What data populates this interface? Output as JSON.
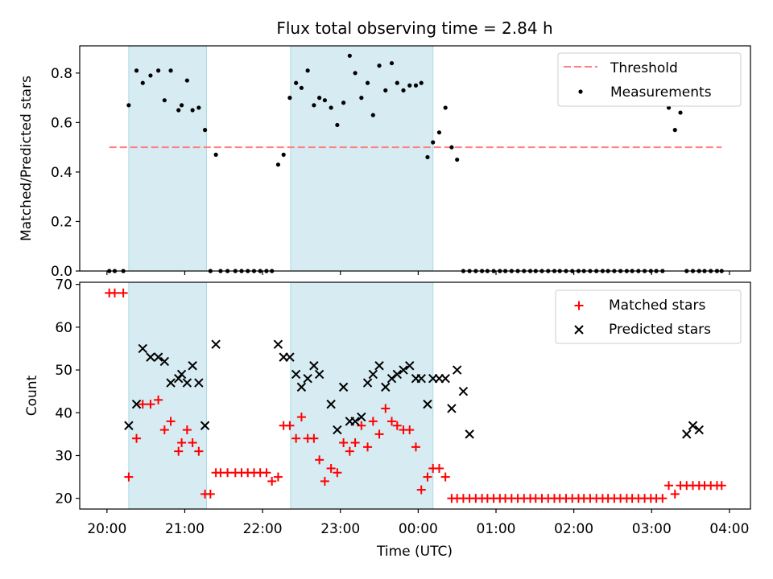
{
  "chart_data": {
    "title": "Flux total observing time = 2.84 h",
    "xlabel": "Time (UTC)",
    "x_unit": "hours from 20:00 UTC",
    "xlim": [
      -0.35,
      8.27
    ],
    "x_ticks": [
      {
        "value": 0,
        "label": "20:00"
      },
      {
        "value": 1,
        "label": "21:00"
      },
      {
        "value": 2,
        "label": "22:00"
      },
      {
        "value": 3,
        "label": "23:00"
      },
      {
        "value": 4,
        "label": "00:00"
      },
      {
        "value": 5,
        "label": "01:00"
      },
      {
        "value": 6,
        "label": "02:00"
      },
      {
        "value": 7,
        "label": "03:00"
      },
      {
        "value": 8,
        "label": "04:00"
      }
    ],
    "observing_windows": [
      [
        0.28,
        1.28
      ],
      [
        2.36,
        4.19
      ]
    ],
    "window_color": "#add8e6",
    "top_panel": {
      "type": "scatter",
      "ylabel": "Matched/Predicted stars",
      "ylim": [
        0,
        0.91
      ],
      "y_ticks": [
        "0.0",
        "0.2",
        "0.4",
        "0.6",
        "0.8"
      ],
      "y_tick_values": [
        0,
        0.2,
        0.4,
        0.6,
        0.8
      ],
      "legend": {
        "position": "top-right",
        "entries": [
          "Threshold",
          "Measurements"
        ]
      },
      "threshold": {
        "name": "Threshold",
        "value": 0.5,
        "x_range": [
          0.03,
          7.9
        ],
        "color": "#ff7f7f",
        "style": "dashed"
      },
      "measurements": {
        "name": "Measurements",
        "color": "#000000",
        "x": [
          0.03,
          0.1,
          0.21,
          0.28,
          0.38,
          0.46,
          0.56,
          0.66,
          0.74,
          0.82,
          0.92,
          0.96,
          1.03,
          1.1,
          1.18,
          1.26,
          1.33,
          1.4,
          1.46,
          1.55,
          1.65,
          1.73,
          1.81,
          1.89,
          1.97,
          2.05,
          2.12,
          2.2,
          2.27,
          2.35,
          2.43,
          2.5,
          2.58,
          2.66,
          2.73,
          2.8,
          2.88,
          2.96,
          3.04,
          3.12,
          3.19,
          3.27,
          3.35,
          3.42,
          3.5,
          3.58,
          3.66,
          3.73,
          3.81,
          3.89,
          3.97,
          4.04,
          4.12,
          4.19,
          4.27,
          4.35,
          4.43,
          4.5,
          4.58,
          4.66,
          4.74,
          4.82,
          4.89,
          4.97,
          5.05,
          5.12,
          5.2,
          5.28,
          5.36,
          5.44,
          5.51,
          5.59,
          5.67,
          5.75,
          5.82,
          5.9,
          5.98,
          6.06,
          6.13,
          6.21,
          6.29,
          6.37,
          6.44,
          6.52,
          6.6,
          6.68,
          6.75,
          6.83,
          6.91,
          6.99,
          7.06,
          7.14,
          7.22,
          7.3,
          7.37,
          7.45,
          7.53,
          7.61,
          7.68,
          7.76,
          7.84,
          7.9
        ],
        "y": [
          0,
          0,
          0,
          0.67,
          0.81,
          0.76,
          0.79,
          0.81,
          0.69,
          0.81,
          0.65,
          0.67,
          0.77,
          0.65,
          0.66,
          0.57,
          0,
          0.47,
          0,
          0,
          0,
          0,
          0,
          0,
          0,
          0,
          0,
          0.43,
          0.47,
          0.7,
          0.76,
          0.74,
          0.81,
          0.67,
          0.7,
          0.69,
          0.66,
          0.59,
          0.68,
          0.87,
          0.8,
          0.7,
          0.76,
          0.63,
          0.83,
          0.73,
          0.84,
          0.76,
          0.73,
          0.75,
          0.75,
          0.76,
          0.46,
          0.52,
          0.56,
          0.66,
          0.5,
          0.45,
          0,
          0,
          0,
          0,
          0,
          0,
          0,
          0,
          0,
          0,
          0,
          0,
          0,
          0,
          0,
          0,
          0,
          0,
          0,
          0,
          0,
          0,
          0,
          0,
          0,
          0,
          0,
          0,
          0,
          0,
          0,
          0,
          0,
          0,
          0.66,
          0.57,
          0.64,
          0,
          0,
          0,
          0,
          0,
          0,
          0
        ]
      }
    },
    "bottom_panel": {
      "type": "scatter",
      "ylabel": "Count",
      "ylim": [
        17.5,
        70.5
      ],
      "y_ticks": [
        "20",
        "30",
        "40",
        "50",
        "60",
        "70"
      ],
      "y_tick_values": [
        20,
        30,
        40,
        50,
        60,
        70
      ],
      "legend": {
        "position": "top-right",
        "entries": [
          "Matched stars",
          "Predicted stars"
        ]
      },
      "series": [
        {
          "name": "Matched stars",
          "marker": "plus",
          "color": "#ff0000",
          "x": [
            0.03,
            0.1,
            0.21,
            0.28,
            0.38,
            0.46,
            0.56,
            0.66,
            0.74,
            0.82,
            0.92,
            0.96,
            1.03,
            1.1,
            1.18,
            1.26,
            1.33,
            1.4,
            1.46,
            1.55,
            1.65,
            1.73,
            1.81,
            1.89,
            1.97,
            2.05,
            2.12,
            2.2,
            2.27,
            2.35,
            2.43,
            2.5,
            2.58,
            2.66,
            2.73,
            2.8,
            2.88,
            2.96,
            3.04,
            3.12,
            3.19,
            3.27,
            3.35,
            3.42,
            3.5,
            3.58,
            3.66,
            3.73,
            3.81,
            3.89,
            3.97,
            4.04,
            4.12,
            4.19,
            4.27,
            4.35,
            4.43,
            4.5,
            4.58,
            4.66,
            4.74,
            4.82,
            4.89,
            4.97,
            5.05,
            5.12,
            5.2,
            5.28,
            5.36,
            5.44,
            5.51,
            5.59,
            5.67,
            5.75,
            5.82,
            5.9,
            5.98,
            6.06,
            6.13,
            6.21,
            6.29,
            6.37,
            6.44,
            6.52,
            6.6,
            6.68,
            6.75,
            6.83,
            6.91,
            6.99,
            7.06,
            7.14,
            7.22,
            7.3,
            7.37,
            7.45,
            7.53,
            7.61,
            7.68,
            7.76,
            7.84,
            7.9
          ],
          "y": [
            68,
            68,
            68,
            25,
            34,
            42,
            42,
            43,
            36,
            38,
            31,
            33,
            36,
            33,
            31,
            21,
            21,
            26,
            26,
            26,
            26,
            26,
            26,
            26,
            26,
            26,
            24,
            25,
            37,
            37,
            34,
            39,
            34,
            34,
            29,
            24,
            27,
            26,
            33,
            31,
            33,
            37,
            32,
            38,
            35,
            41,
            38,
            37,
            36,
            36,
            32,
            22,
            25,
            27,
            27,
            25,
            20,
            20,
            20,
            20,
            20,
            20,
            20,
            20,
            20,
            20,
            20,
            20,
            20,
            20,
            20,
            20,
            20,
            20,
            20,
            20,
            20,
            20,
            20,
            20,
            20,
            20,
            20,
            20,
            20,
            20,
            20,
            20,
            20,
            20,
            20,
            20,
            23,
            21,
            23,
            23,
            23,
            23,
            23,
            23,
            23,
            23
          ]
        },
        {
          "name": "Predicted stars",
          "marker": "x",
          "color": "#000000",
          "x": [
            0.28,
            0.38,
            0.46,
            0.56,
            0.66,
            0.74,
            0.82,
            0.92,
            0.96,
            1.03,
            1.1,
            1.18,
            1.26,
            1.4,
            2.2,
            2.27,
            2.35,
            2.43,
            2.5,
            2.58,
            2.66,
            2.73,
            2.88,
            2.96,
            3.04,
            3.12,
            3.19,
            3.27,
            3.35,
            3.42,
            3.5,
            3.58,
            3.66,
            3.73,
            3.81,
            3.89,
            3.97,
            4.04,
            4.12,
            4.19,
            4.27,
            4.35,
            4.43,
            4.5,
            4.58,
            4.66,
            7.45,
            7.53,
            7.61
          ],
          "y": [
            37,
            42,
            55,
            53,
            53,
            52,
            47,
            48,
            49,
            47,
            51,
            47,
            37,
            56,
            56,
            53,
            53,
            49,
            46,
            48,
            51,
            49,
            42,
            36,
            46,
            38,
            38,
            39,
            47,
            49,
            51,
            46,
            48,
            49,
            50,
            51,
            48,
            48,
            42,
            48,
            48,
            48,
            41,
            50,
            45,
            35,
            35,
            37,
            36
          ]
        }
      ]
    }
  }
}
